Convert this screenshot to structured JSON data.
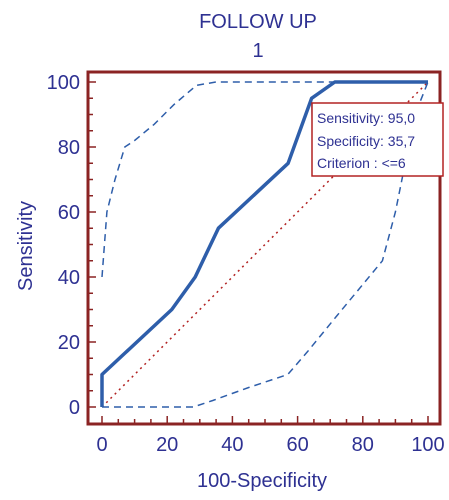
{
  "chart_data": {
    "type": "line",
    "title": "FOLLOW UP",
    "subtitle": "1",
    "xlabel": "100-Specificity",
    "ylabel": "Sensitivity",
    "xlim": [
      0,
      100
    ],
    "ylim": [
      0,
      100
    ],
    "x_ticks": [
      "0",
      "20",
      "40",
      "60",
      "80",
      "100"
    ],
    "y_ticks": [
      "0",
      "20",
      "40",
      "60",
      "80",
      "100"
    ],
    "grid": false,
    "series": [
      {
        "role": "roc-curve",
        "style": "solid",
        "points": [
          [
            0,
            0
          ],
          [
            0,
            10
          ],
          [
            21.4,
            30
          ],
          [
            28.6,
            40
          ],
          [
            35.7,
            55
          ],
          [
            57.1,
            75
          ],
          [
            64.3,
            95
          ],
          [
            71.4,
            100
          ],
          [
            100,
            100
          ]
        ]
      },
      {
        "role": "upper-confidence-bound",
        "style": "dashed",
        "points": [
          [
            0,
            40
          ],
          [
            1.5,
            60
          ],
          [
            4,
            70
          ],
          [
            7,
            80
          ],
          [
            10,
            82
          ],
          [
            16,
            87
          ],
          [
            22,
            93
          ],
          [
            29,
            99
          ],
          [
            35,
            100
          ],
          [
            100,
            100
          ]
        ]
      },
      {
        "role": "lower-confidence-bound",
        "style": "dashed",
        "points": [
          [
            0,
            0
          ],
          [
            28,
            0
          ],
          [
            34,
            2
          ],
          [
            45,
            6
          ],
          [
            57,
            10
          ],
          [
            63,
            17
          ],
          [
            72,
            28
          ],
          [
            86,
            45
          ],
          [
            90,
            60
          ],
          [
            93,
            75
          ],
          [
            96,
            90
          ],
          [
            100,
            100
          ]
        ]
      },
      {
        "role": "reference-diagonal",
        "style": "dotted",
        "points": [
          [
            0,
            0
          ],
          [
            100,
            100
          ]
        ]
      }
    ],
    "marker": {
      "x": 64.3,
      "y": 95
    },
    "annotation": {
      "lines": [
        "Sensitivity: 95,0",
        "Specificity: 35,7",
        "Criterion : <=6"
      ],
      "placement": "upper-right"
    }
  },
  "colors": {
    "frame": "#8b2323",
    "curve": "#2e5eaa",
    "text": "#2e3192",
    "diagonal": "#b22222"
  }
}
